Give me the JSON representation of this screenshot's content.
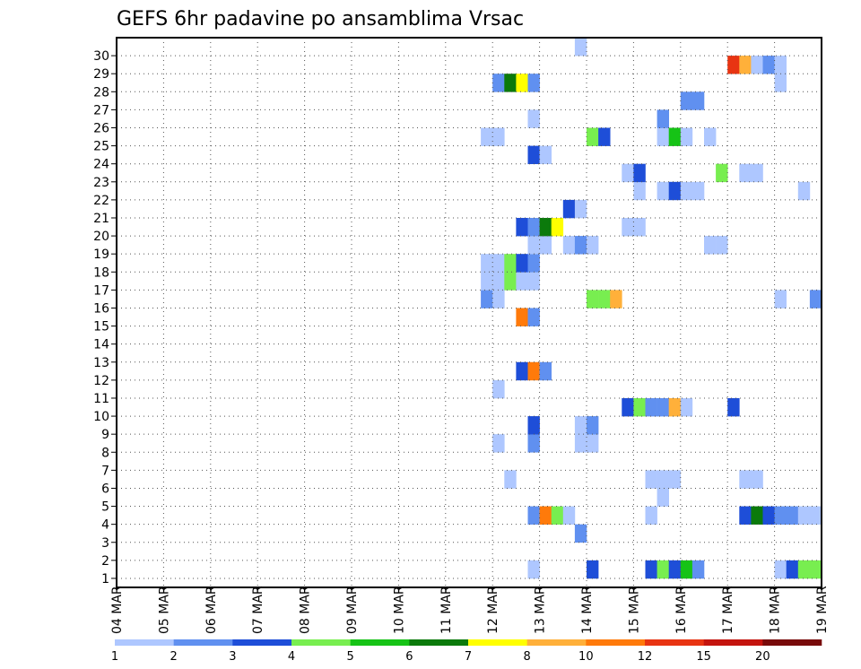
{
  "chart_data": {
    "type": "heatmap",
    "title": "GEFS 6hr padavine po ansamblima Vrsac",
    "xlabel": "",
    "ylabel": "",
    "x_tick_labels": [
      "04 MAR",
      "05 MAR",
      "06 MAR",
      "07 MAR",
      "08 MAR",
      "09 MAR",
      "10 MAR",
      "11 MAR",
      "12 MAR",
      "13 MAR",
      "14 MAR",
      "15 MAR",
      "16 MAR",
      "17 MAR",
      "18 MAR",
      "19 MAR"
    ],
    "y_tick_labels": [
      "1",
      "2",
      "3",
      "4",
      "5",
      "6",
      "7",
      "8",
      "9",
      "10",
      "11",
      "12",
      "13",
      "14",
      "15",
      "16",
      "17",
      "18",
      "19",
      "20",
      "21",
      "22",
      "23",
      "24",
      "25",
      "26",
      "27",
      "28",
      "29",
      "30"
    ],
    "xlim_days": [
      0,
      15
    ],
    "ylim_members": [
      0,
      30
    ],
    "step_hours": 6,
    "grid": true,
    "legend_placement": "bottom",
    "legend": {
      "labels": [
        "1",
        "2",
        "3",
        "4",
        "5",
        "6",
        "7",
        "8",
        "10",
        "12",
        "15",
        "20"
      ],
      "colors": [
        "#aec7ff",
        "#6090f0",
        "#1e4ed8",
        "#78ee50",
        "#16c316",
        "#0b7a0b",
        "#ffff00",
        "#ffb03a",
        "#ff7a0a",
        "#e83412",
        "#c4140e",
        "#780a0a"
      ]
    },
    "cells": [
      {
        "m": 0,
        "s": [
          [
            35,
            1
          ],
          [
            40,
            3
          ],
          [
            45,
            3
          ],
          [
            46,
            4
          ],
          [
            47,
            3
          ],
          [
            48,
            5
          ],
          [
            49,
            2
          ],
          [
            56,
            1
          ],
          [
            57,
            3
          ],
          [
            58,
            4
          ],
          [
            59,
            4
          ]
        ]
      },
      {
        "m": 2,
        "s": [
          [
            39,
            2
          ]
        ]
      },
      {
        "m": 3,
        "s": [
          [
            35,
            2
          ],
          [
            36,
            9
          ],
          [
            37,
            4
          ],
          [
            38,
            1
          ],
          [
            45,
            1
          ],
          [
            53,
            3
          ],
          [
            54,
            6
          ],
          [
            55,
            3
          ],
          [
            56,
            2
          ],
          [
            57,
            2
          ],
          [
            58,
            1
          ],
          [
            59,
            1
          ]
        ]
      },
      {
        "m": 4,
        "s": [
          [
            46,
            1
          ]
        ]
      },
      {
        "m": 5,
        "s": [
          [
            33,
            1
          ],
          [
            45,
            1
          ],
          [
            46,
            1
          ],
          [
            47,
            1
          ],
          [
            53,
            1
          ],
          [
            54,
            1
          ]
        ]
      },
      {
        "m": 7,
        "s": [
          [
            32,
            1
          ],
          [
            35,
            2
          ],
          [
            39,
            1
          ],
          [
            40,
            1
          ]
        ]
      },
      {
        "m": 8,
        "s": [
          [
            35,
            3
          ],
          [
            39,
            1
          ],
          [
            40,
            2
          ]
        ]
      },
      {
        "m": 9,
        "s": [
          [
            43,
            3
          ],
          [
            44,
            4
          ],
          [
            45,
            2
          ],
          [
            46,
            2
          ],
          [
            47,
            8
          ],
          [
            48,
            1
          ],
          [
            52,
            3
          ]
        ]
      },
      {
        "m": 10,
        "s": [
          [
            32,
            1
          ]
        ]
      },
      {
        "m": 11,
        "s": [
          [
            34,
            3
          ],
          [
            35,
            9
          ],
          [
            36,
            2
          ]
        ]
      },
      {
        "m": 14,
        "s": [
          [
            34,
            9
          ],
          [
            35,
            2
          ]
        ]
      },
      {
        "m": 15,
        "s": [
          [
            31,
            2
          ],
          [
            32,
            1
          ],
          [
            40,
            4
          ],
          [
            41,
            4
          ],
          [
            42,
            8
          ],
          [
            56,
            1
          ],
          [
            59,
            2
          ]
        ]
      },
      {
        "m": 16,
        "s": [
          [
            31,
            1
          ],
          [
            32,
            1
          ],
          [
            33,
            4
          ],
          [
            34,
            1
          ],
          [
            35,
            1
          ]
        ]
      },
      {
        "m": 17,
        "s": [
          [
            31,
            1
          ],
          [
            32,
            1
          ],
          [
            33,
            4
          ],
          [
            34,
            3
          ],
          [
            35,
            2
          ]
        ]
      },
      {
        "m": 18,
        "s": [
          [
            35,
            1
          ],
          [
            36,
            1
          ],
          [
            38,
            1
          ],
          [
            39,
            2
          ],
          [
            40,
            1
          ],
          [
            50,
            1
          ],
          [
            51,
            1
          ]
        ]
      },
      {
        "m": 19,
        "s": [
          [
            34,
            3
          ],
          [
            35,
            2
          ],
          [
            36,
            6
          ],
          [
            37,
            7
          ],
          [
            43,
            1
          ],
          [
            44,
            1
          ]
        ]
      },
      {
        "m": 20,
        "s": [
          [
            38,
            3
          ],
          [
            39,
            1
          ]
        ]
      },
      {
        "m": 21,
        "s": [
          [
            44,
            1
          ],
          [
            46,
            1
          ],
          [
            47,
            3
          ],
          [
            48,
            1
          ],
          [
            49,
            1
          ],
          [
            58,
            1
          ]
        ]
      },
      {
        "m": 22,
        "s": [
          [
            43,
            1
          ],
          [
            44,
            3
          ],
          [
            51,
            4
          ],
          [
            53,
            1
          ],
          [
            54,
            1
          ]
        ]
      },
      {
        "m": 23,
        "s": [
          [
            35,
            3
          ],
          [
            36,
            1
          ]
        ]
      },
      {
        "m": 24,
        "s": [
          [
            31,
            1
          ],
          [
            32,
            1
          ],
          [
            40,
            4
          ],
          [
            41,
            3
          ],
          [
            46,
            1
          ],
          [
            47,
            5
          ],
          [
            48,
            1
          ],
          [
            50,
            1
          ]
        ]
      },
      {
        "m": 25,
        "s": [
          [
            35,
            1
          ],
          [
            46,
            2
          ]
        ]
      },
      {
        "m": 26,
        "s": [
          [
            48,
            2
          ],
          [
            49,
            2
          ]
        ]
      },
      {
        "m": 27,
        "s": [
          [
            32,
            2
          ],
          [
            33,
            6
          ],
          [
            34,
            7
          ],
          [
            35,
            2
          ],
          [
            56,
            1
          ]
        ]
      },
      {
        "m": 28,
        "s": [
          [
            52,
            10
          ],
          [
            53,
            8
          ],
          [
            54,
            1
          ],
          [
            55,
            2
          ],
          [
            56,
            1
          ]
        ]
      },
      {
        "m": 29,
        "s": [
          [
            39,
            1
          ]
        ]
      }
    ]
  }
}
